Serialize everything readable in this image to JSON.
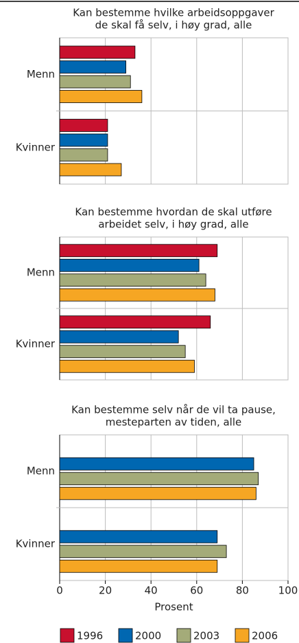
{
  "chart_data": [
    {
      "type": "bar",
      "orientation": "horizontal",
      "title": [
        "Kan bestemme hvilke arbeidsoppgaver",
        "de skal få selv, i høy grad, alle"
      ],
      "categories": [
        "Menn",
        "Kvinner"
      ],
      "series": [
        {
          "name": "1996",
          "color": "#c8102e",
          "values": [
            33,
            21
          ]
        },
        {
          "name": "2000",
          "color": "#0067b1",
          "values": [
            29,
            21
          ]
        },
        {
          "name": "2003",
          "color": "#a4ab79",
          "values": [
            31,
            21
          ]
        },
        {
          "name": "2006",
          "color": "#f6a623",
          "values": [
            36,
            27
          ]
        }
      ],
      "xlim": [
        0,
        100
      ],
      "xticks": [
        0,
        20,
        40,
        60,
        80,
        100
      ],
      "grid": true
    },
    {
      "type": "bar",
      "orientation": "horizontal",
      "title": [
        "Kan bestemme hvordan de skal utføre",
        "arbeidet selv, i høy grad, alle"
      ],
      "categories": [
        "Menn",
        "Kvinner"
      ],
      "series": [
        {
          "name": "1996",
          "color": "#c8102e",
          "values": [
            69,
            66
          ]
        },
        {
          "name": "2000",
          "color": "#0067b1",
          "values": [
            61,
            52
          ]
        },
        {
          "name": "2003",
          "color": "#a4ab79",
          "values": [
            64,
            55
          ]
        },
        {
          "name": "2006",
          "color": "#f6a623",
          "values": [
            68,
            59
          ]
        }
      ],
      "xlim": [
        0,
        100
      ],
      "xticks": [
        0,
        20,
        40,
        60,
        80,
        100
      ],
      "grid": true
    },
    {
      "type": "bar",
      "orientation": "horizontal",
      "title": [
        "Kan bestemme selv når de vil ta pause,",
        "mesteparten av tiden, alle"
      ],
      "categories": [
        "Menn",
        "Kvinner"
      ],
      "series": [
        {
          "name": "1996",
          "color": "#c8102e",
          "values": [
            null,
            null
          ]
        },
        {
          "name": "2000",
          "color": "#0067b1",
          "values": [
            85,
            69
          ]
        },
        {
          "name": "2003",
          "color": "#a4ab79",
          "values": [
            87,
            73
          ]
        },
        {
          "name": "2006",
          "color": "#f6a623",
          "values": [
            86,
            69
          ]
        }
      ],
      "xlim": [
        0,
        100
      ],
      "xticks": [
        0,
        20,
        40,
        60,
        80,
        100
      ],
      "grid": true,
      "xlabel": "Prosent",
      "legend": "bottom"
    }
  ]
}
